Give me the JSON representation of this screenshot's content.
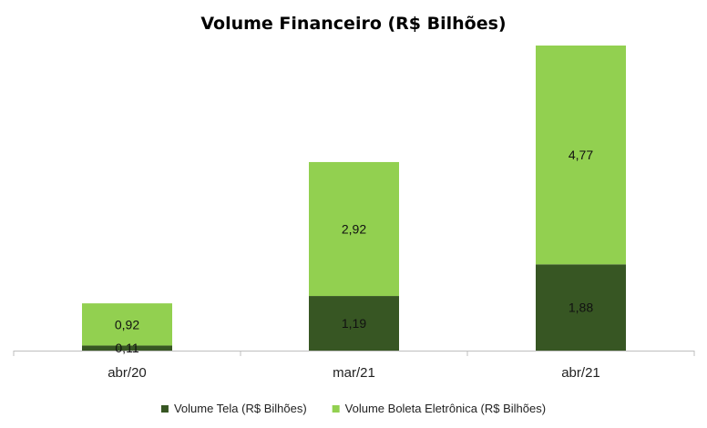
{
  "chart_data": {
    "type": "bar",
    "stacked": true,
    "title": "Volume Financeiro (R$ Bilhões)",
    "xlabel": "",
    "ylabel": "",
    "categories": [
      "abr/20",
      "mar/21",
      "abr/21"
    ],
    "series": [
      {
        "name": "Volume Tela (R$ Bilhões)",
        "values": [
          0.11,
          1.19,
          1.88
        ],
        "labels": [
          "0,11",
          "1,19",
          "1,88"
        ],
        "color": "#375623"
      },
      {
        "name": "Volume Boleta Eletrônica (R$ Bilhões)",
        "values": [
          0.92,
          2.92,
          4.77
        ],
        "labels": [
          "0,92",
          "2,92",
          "4,77"
        ],
        "color": "#92D050"
      }
    ],
    "ylim": [
      0,
      6.65
    ],
    "grid": false,
    "y_axis_visible": false,
    "legend_position": "bottom"
  }
}
